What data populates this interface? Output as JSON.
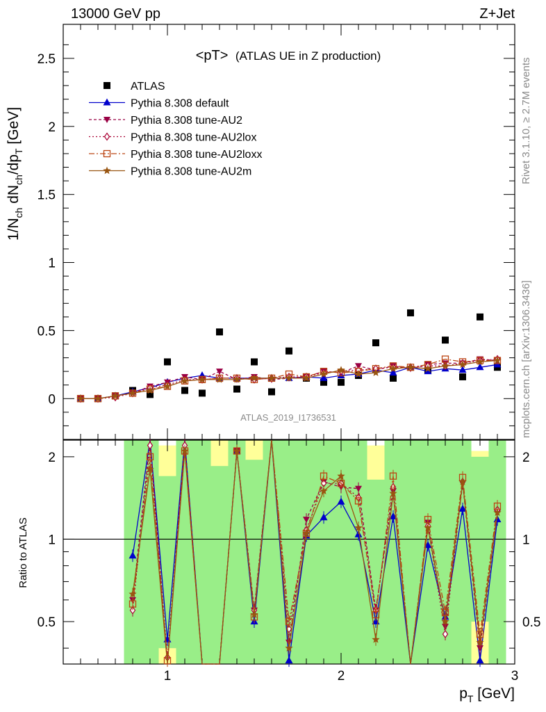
{
  "header": {
    "left": "13000 GeV pp",
    "right": "Z+Jet"
  },
  "plot_title": {
    "main": "<pT>",
    "sub": "(ATLAS UE in Z production)"
  },
  "analysis_id": "ATLAS_2019_I1736531",
  "side_text": {
    "rivet": "Rivet 3.1.10, ≥ 2.7M events",
    "source": "mcplots.cern.ch [arXiv:1306.3436]"
  },
  "colors": {
    "band_green": "#99ee88",
    "band_yellow": "#ffff99",
    "ATLAS": "#000000",
    "default": "#0000cc",
    "AU2": "#990044",
    "AU2lox": "#aa0033",
    "AU2loxx": "#bb4411",
    "AU2m": "#995511"
  },
  "chart_data": [
    {
      "type": "scatter",
      "panel": "main",
      "ylabel": "1/N_ch dN_ch/dp_T [GeV]",
      "xlim": [
        0.4,
        3.0
      ],
      "ylim": [
        -0.3,
        2.75
      ],
      "y_ticks": [
        0,
        0.5,
        1,
        1.5,
        2,
        2.5
      ],
      "y_tick_labels": [
        "0",
        "0.5",
        "1",
        "1.5",
        "2",
        "2.5"
      ],
      "legend_position": "top-left",
      "x": [
        0.5,
        0.6,
        0.7,
        0.8,
        0.9,
        1.0,
        1.1,
        1.2,
        1.3,
        1.4,
        1.5,
        1.6,
        1.7,
        1.8,
        1.9,
        2.0,
        2.1,
        2.2,
        2.3,
        2.4,
        2.5,
        2.6,
        2.7,
        2.8,
        2.9
      ],
      "series": [
        {
          "name": "ATLAS",
          "key": "ATLAS",
          "values": [
            0.0,
            0.0,
            0.02,
            0.06,
            0.03,
            0.27,
            0.06,
            0.04,
            0.49,
            0.07,
            0.27,
            0.05,
            0.35,
            0.15,
            0.12,
            0.12,
            0.17,
            0.41,
            0.15,
            0.63,
            0.21,
            0.43,
            0.16,
            0.6,
            0.23
          ]
        },
        {
          "name": "Pythia 8.308 default",
          "key": "default",
          "values": [
            0.0,
            0.0,
            0.02,
            0.05,
            0.08,
            0.12,
            0.15,
            0.17,
            0.15,
            0.15,
            0.15,
            0.15,
            0.15,
            0.16,
            0.15,
            0.17,
            0.18,
            0.21,
            0.19,
            0.23,
            0.2,
            0.22,
            0.21,
            0.23,
            0.25
          ]
        },
        {
          "name": "Pythia 8.308 tune-AU2",
          "key": "AU2",
          "values": [
            0.0,
            0.0,
            0.02,
            0.04,
            0.09,
            0.12,
            0.16,
            0.14,
            0.2,
            0.14,
            0.16,
            0.14,
            0.15,
            0.16,
            0.2,
            0.19,
            0.24,
            0.21,
            0.24,
            0.22,
            0.25,
            0.26,
            0.26,
            0.29,
            0.28
          ]
        },
        {
          "name": "Pythia 8.308 tune-AU2lox",
          "key": "AU2lox",
          "values": [
            0.0,
            0.0,
            0.01,
            0.04,
            0.08,
            0.1,
            0.14,
            0.14,
            0.15,
            0.15,
            0.14,
            0.15,
            0.16,
            0.16,
            0.19,
            0.2,
            0.21,
            0.22,
            0.23,
            0.23,
            0.24,
            0.24,
            0.26,
            0.28,
            0.29
          ]
        },
        {
          "name": "Pythia 8.308 tune-AU2loxx",
          "key": "AU2loxx",
          "values": [
            0.0,
            0.0,
            0.02,
            0.04,
            0.07,
            0.09,
            0.13,
            0.14,
            0.15,
            0.15,
            0.14,
            0.15,
            0.18,
            0.16,
            0.2,
            0.19,
            0.2,
            0.22,
            0.24,
            0.23,
            0.25,
            0.29,
            0.27,
            0.28,
            0.28
          ]
        },
        {
          "name": "Pythia 8.308 tune-AU2m",
          "key": "AU2m",
          "values": [
            0.0,
            0.0,
            0.02,
            0.04,
            0.06,
            0.09,
            0.13,
            0.14,
            0.14,
            0.14,
            0.15,
            0.15,
            0.15,
            0.15,
            0.18,
            0.21,
            0.18,
            0.19,
            0.22,
            0.23,
            0.22,
            0.24,
            0.25,
            0.27,
            0.28
          ]
        }
      ]
    },
    {
      "type": "line",
      "panel": "ratio",
      "ylabel": "Ratio to ATLAS",
      "xlabel": "p_T [GeV]",
      "xlim": [
        0.4,
        3.0
      ],
      "ylim": [
        0.35,
        2.3
      ],
      "reference_line": 1,
      "x_ticks": [
        1,
        2,
        3
      ],
      "x_tick_labels": [
        "1",
        "2",
        "3"
      ],
      "y_ticks": [
        0.5,
        1,
        2
      ],
      "y_tick_labels": [
        "0.5",
        "1",
        "2"
      ],
      "x": [
        0.8,
        0.9,
        1.0,
        1.1,
        1.2,
        1.3,
        1.4,
        1.5,
        1.6,
        1.7,
        1.8,
        1.9,
        2.0,
        2.1,
        2.2,
        2.3,
        2.4,
        2.5,
        2.6,
        2.7,
        2.8,
        2.9
      ],
      "band_x_edges": [
        0.75,
        0.85,
        0.95,
        1.05,
        1.15,
        1.25,
        1.35,
        1.45,
        1.55,
        1.65,
        1.75,
        1.85,
        1.95,
        2.05,
        2.15,
        2.25,
        2.35,
        2.45,
        2.55,
        2.65,
        2.75,
        2.85,
        2.95
      ],
      "band_green_low": [
        0.35,
        0.35,
        0.4,
        0.35,
        0.35,
        0.35,
        0.35,
        0.35,
        0.35,
        0.35,
        0.35,
        0.35,
        0.35,
        0.35,
        0.35,
        0.35,
        0.35,
        0.35,
        0.35,
        0.35,
        0.5,
        0.35
      ],
      "band_green_high": [
        2.3,
        2.3,
        1.7,
        2.3,
        2.3,
        1.85,
        2.3,
        1.95,
        2.3,
        2.3,
        2.3,
        2.3,
        2.3,
        2.3,
        1.65,
        2.3,
        2.3,
        2.3,
        2.3,
        2.3,
        2.0,
        2.3
      ],
      "band_yellow_low": [
        0.35,
        0.35,
        0.35,
        0.35,
        0.35,
        0.35,
        0.35,
        0.35,
        0.35,
        0.35,
        0.35,
        0.35,
        0.35,
        0.35,
        0.35,
        0.35,
        0.35,
        0.35,
        0.35,
        0.35,
        0.35,
        0.35
      ],
      "band_yellow_high": [
        2.3,
        2.3,
        2.2,
        2.3,
        2.3,
        2.3,
        2.3,
        2.3,
        2.3,
        2.3,
        2.3,
        2.3,
        2.3,
        2.2,
        2.2,
        2.3,
        2.3,
        2.3,
        2.3,
        2.3,
        2.1,
        2.3
      ],
      "series": [
        {
          "name": "Pythia 8.308 default",
          "key": "default",
          "values": [
            0.87,
            2.3,
            0.43,
            2.3,
            0.3,
            0.3,
            2.1,
            0.5,
            2.3,
            0.36,
            1.03,
            1.2,
            1.37,
            1.04,
            0.5,
            1.21,
            0.3,
            0.95,
            0.52,
            1.29,
            0.36,
            1.18
          ]
        },
        {
          "name": "Pythia 8.308 tune-AU2",
          "key": "AU2",
          "values": [
            0.6,
            2.3,
            0.35,
            2.3,
            0.3,
            0.3,
            2.1,
            0.55,
            2.3,
            0.42,
            1.18,
            1.62,
            1.55,
            1.53,
            0.55,
            1.5,
            0.3,
            1.15,
            0.48,
            1.6,
            0.4,
            1.25
          ]
        },
        {
          "name": "Pythia 8.308 tune-AU2lox",
          "key": "AU2lox",
          "values": [
            0.55,
            2.2,
            0.37,
            2.2,
            0.3,
            0.3,
            2.1,
            0.55,
            2.3,
            0.47,
            1.08,
            1.6,
            1.6,
            1.42,
            0.55,
            1.55,
            0.3,
            1.12,
            0.45,
            1.62,
            0.42,
            1.28
          ]
        },
        {
          "name": "Pythia 8.308 tune-AU2loxx",
          "key": "AU2loxx",
          "values": [
            0.58,
            2.0,
            0.36,
            2.1,
            0.3,
            0.3,
            2.1,
            0.52,
            2.3,
            0.5,
            1.05,
            1.7,
            1.6,
            1.38,
            0.53,
            1.7,
            0.3,
            1.18,
            0.54,
            1.68,
            0.45,
            1.32
          ]
        },
        {
          "name": "Pythia 8.308 tune-AU2m",
          "key": "AU2m",
          "values": [
            0.63,
            1.8,
            0.35,
            2.1,
            0.3,
            0.3,
            2.1,
            0.53,
            2.3,
            0.4,
            1.05,
            1.5,
            1.7,
            1.1,
            0.43,
            1.47,
            0.3,
            1.1,
            0.5,
            1.62,
            0.42,
            1.25
          ]
        }
      ]
    }
  ]
}
